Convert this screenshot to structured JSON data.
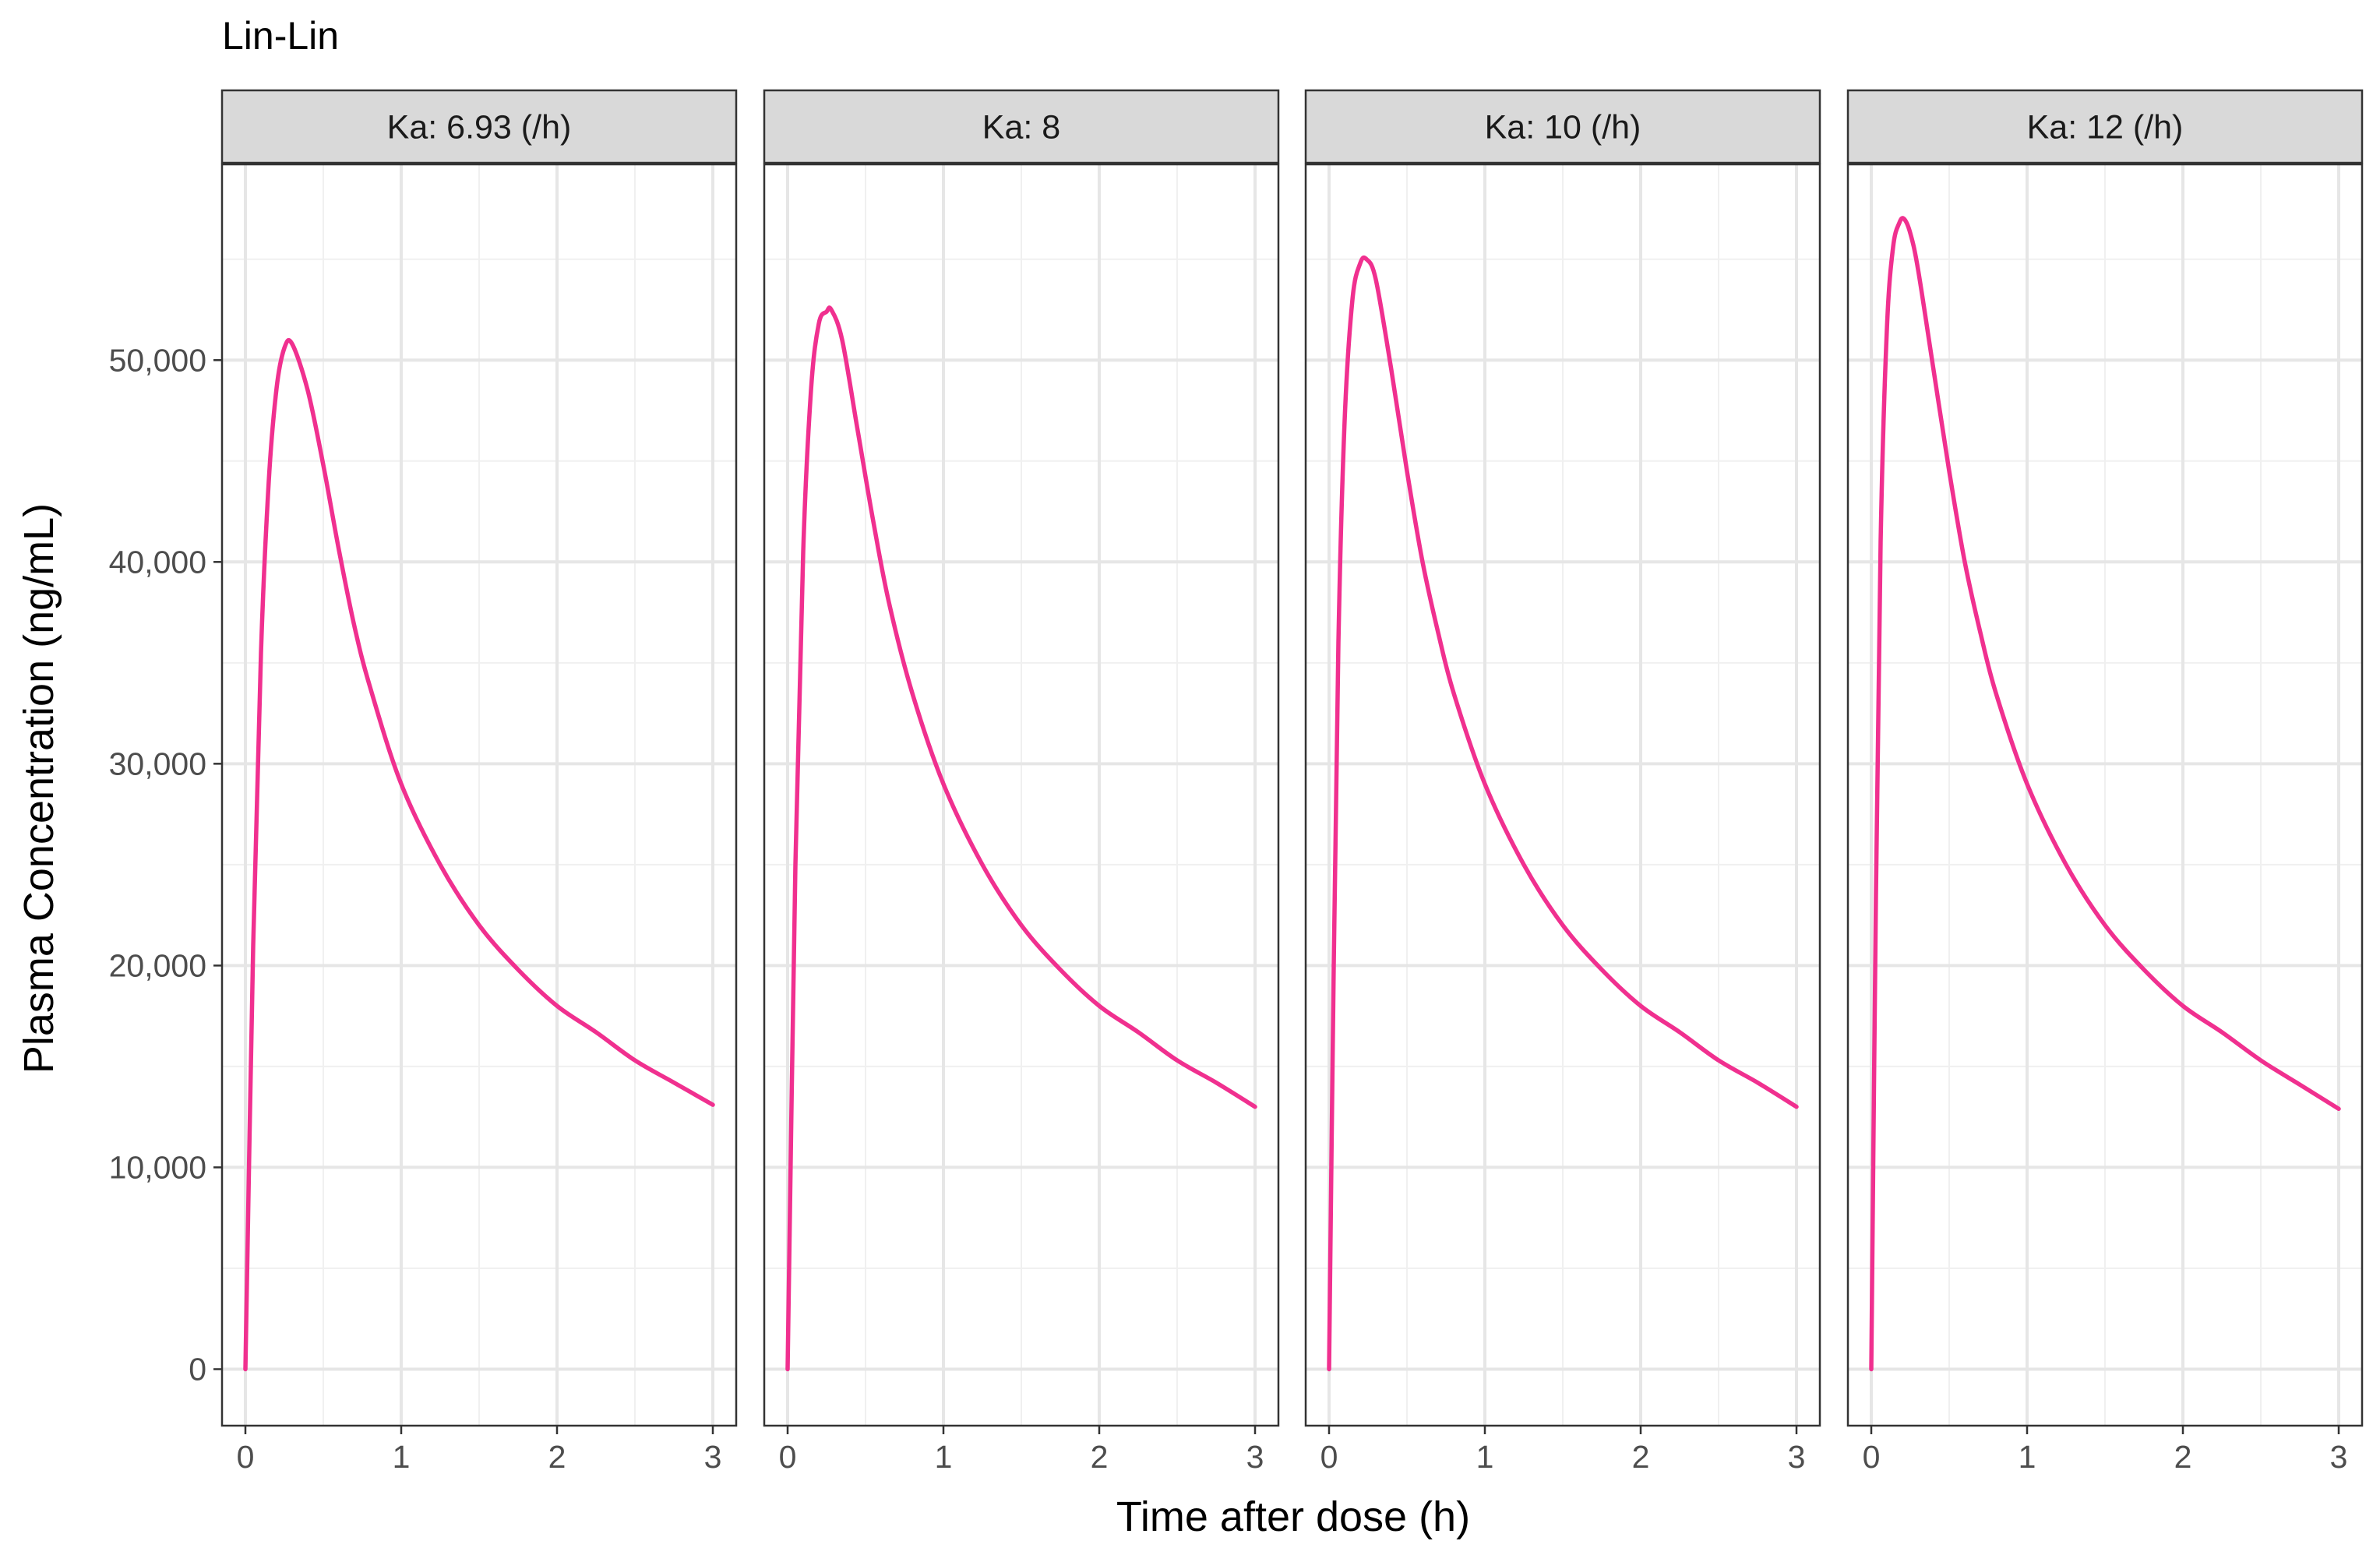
{
  "chart_data": {
    "type": "line",
    "title": "Lin-Lin",
    "xlabel": "Time after dose (h)",
    "ylabel": "Plasma Concentration (ng/mL)",
    "xlim": [
      -0.15,
      3.15
    ],
    "ylim": [
      -2800,
      59700
    ],
    "x_ticks": [
      0,
      1,
      2,
      3
    ],
    "x_tick_labels": [
      "0",
      "1",
      "2",
      "3"
    ],
    "y_ticks": [
      0,
      10000,
      20000,
      30000,
      40000,
      50000
    ],
    "y_tick_labels": [
      "0",
      "10,000",
      "20,000",
      "30,000",
      "40,000",
      "50,000"
    ],
    "grid": true,
    "line_color": "#F0308F",
    "panels": [
      {
        "label": "Ka: 6.93 (/h)",
        "x": [
          0,
          0.05,
          0.1,
          0.15,
          0.2,
          0.25,
          0.3,
          0.4,
          0.5,
          0.6,
          0.7,
          0.8,
          1.0,
          1.25,
          1.5,
          1.75,
          2.0,
          2.25,
          2.5,
          2.75,
          3.0
        ],
        "y": [
          0,
          21000,
          35500,
          44000,
          48600,
          50600,
          50800,
          48500,
          44800,
          40600,
          36800,
          33800,
          29000,
          25000,
          22000,
          19800,
          18000,
          16700,
          15300,
          14200,
          13100
        ]
      },
      {
        "label": "Ka: 8",
        "x": [
          0,
          0.05,
          0.1,
          0.15,
          0.2,
          0.25,
          0.28,
          0.35,
          0.45,
          0.55,
          0.65,
          0.8,
          1.0,
          1.25,
          1.5,
          1.75,
          2.0,
          2.25,
          2.5,
          2.75,
          3.0
        ],
        "y": [
          0,
          25000,
          40500,
          48500,
          51800,
          52400,
          52500,
          51000,
          46500,
          42000,
          38000,
          33500,
          29000,
          25000,
          22000,
          19800,
          18000,
          16700,
          15300,
          14200,
          13000
        ]
      },
      {
        "label": "Ka: 10 (/h)",
        "x": [
          0,
          0.03,
          0.06,
          0.1,
          0.15,
          0.2,
          0.24,
          0.3,
          0.4,
          0.5,
          0.6,
          0.7,
          0.8,
          1.0,
          1.25,
          1.5,
          1.75,
          2.0,
          2.25,
          2.5,
          2.75,
          3.0
        ],
        "y": [
          0,
          20000,
          36000,
          47000,
          53000,
          54800,
          55000,
          54000,
          49500,
          44500,
          40000,
          36500,
          33500,
          29000,
          25000,
          22000,
          19800,
          18000,
          16700,
          15300,
          14200,
          13000
        ]
      },
      {
        "label": "Ka: 12 (/h)",
        "x": [
          0,
          0.03,
          0.06,
          0.1,
          0.14,
          0.18,
          0.21,
          0.25,
          0.3,
          0.4,
          0.5,
          0.6,
          0.7,
          0.8,
          1.0,
          1.25,
          1.5,
          1.75,
          2.0,
          2.25,
          2.5,
          2.75,
          3.0
        ],
        "y": [
          0,
          23500,
          41000,
          51500,
          55600,
          56800,
          57000,
          56300,
          54500,
          49500,
          44500,
          40000,
          36500,
          33500,
          29000,
          25000,
          22000,
          19800,
          18000,
          16700,
          15300,
          14100,
          12900
        ]
      }
    ]
  }
}
